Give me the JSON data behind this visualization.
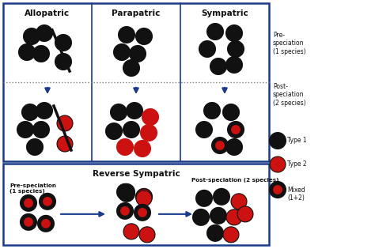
{
  "title_allopatric": "Allopatric",
  "title_parapatric": "Parapatric",
  "title_sympatric": "Sympatric",
  "title_reverse": "Reverse Sympatric",
  "black": "#111111",
  "red": "#cc1111",
  "blue_arrow": "#1a3a8a",
  "box_edge": "#1a3a8a",
  "bg": "#ffffff",
  "label_pre": "Pre-\nspeciation\n(1 species)",
  "label_post": "Post-\nspeciation\n(2 species)",
  "label_type1": "Type 1",
  "label_type2": "Type 2",
  "label_mixed": "Mixed\n(1+2)",
  "label_pre_rev": "Pre-speciation\n(1 species)",
  "label_post_rev": "Post-speciation (2 species)"
}
